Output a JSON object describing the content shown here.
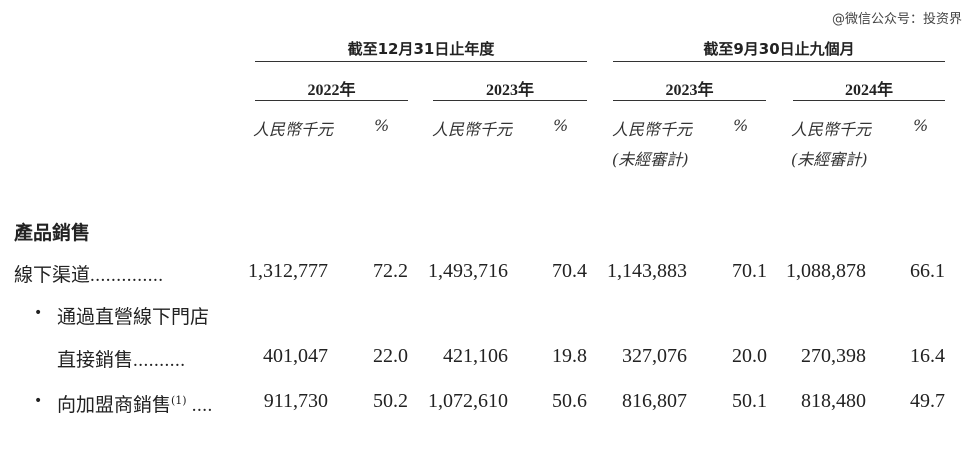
{
  "watermark": "@微信公众号：投资界",
  "periods": [
    {
      "label": "截至12月31日止年度"
    },
    {
      "label": "截至9月30日止九個月"
    }
  ],
  "years": [
    "2022年",
    "2023年",
    "2023年",
    "2024年"
  ],
  "units": {
    "amount": "人民幣千元",
    "percent": "%",
    "unaudited": "(未經審計)"
  },
  "section": "產品銷售",
  "rows": [
    {
      "label": "線下渠道",
      "dots": "..............",
      "values": [
        "1,312,777",
        "72.2",
        "1,493,716",
        "70.4",
        "1,143,883",
        "70.1",
        "1,088,878",
        "66.1"
      ]
    },
    {
      "bullet": "•",
      "label_line1": "通過直營線下門店",
      "label": "直接銷售",
      "dots": "..........",
      "values": [
        "401,047",
        "22.0",
        "421,106",
        "19.8",
        "327,076",
        "20.0",
        "270,398",
        "16.4"
      ]
    },
    {
      "bullet": "•",
      "label": "向加盟商銷售",
      "sup": "(1)",
      "dots": "....",
      "values": [
        "911,730",
        "50.2",
        "1,072,610",
        "50.6",
        "816,807",
        "50.1",
        "818,480",
        "49.7"
      ]
    }
  ]
}
